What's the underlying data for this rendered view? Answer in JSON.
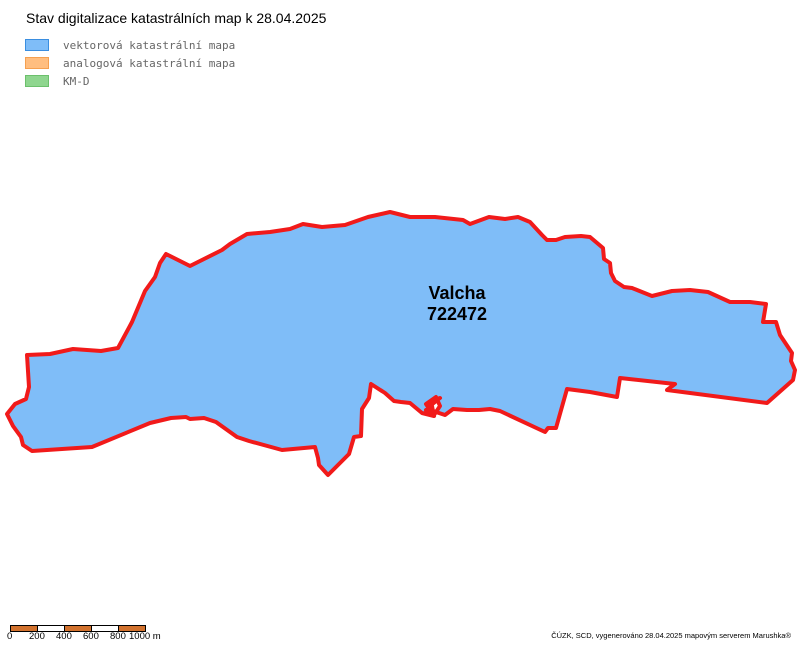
{
  "map": {
    "title": "Stav digitalizace katastrálních map k 28.04.2025",
    "legend": [
      {
        "label": "vektorová katastrální mapa",
        "fill": "#7fbdf8",
        "stroke": "#3a8ee0",
        "icon": "legend-swatch-vector"
      },
      {
        "label": "analogová katastrální mapa",
        "fill": "#ffbe80",
        "stroke": "#f5a050",
        "icon": "legend-swatch-analog"
      },
      {
        "label": "KM-D",
        "fill": "#8fd68f",
        "stroke": "#6cc06c",
        "icon": "legend-swatch-kmd"
      }
    ],
    "area": {
      "name": "Valcha",
      "code": "722472",
      "fill": "#7fbdf8",
      "outline": "#f11a1a"
    },
    "scale": {
      "ticks": [
        "0",
        "200",
        "400",
        "600",
        "800",
        "1000 m"
      ],
      "colors": [
        "#d2722e",
        "#ffffff",
        "#d2722e",
        "#ffffff",
        "#d2722e"
      ]
    },
    "credit": "ČÚZK, SCD, vygenerováno 28.04.2025 mapovým serverem Marushka®"
  }
}
